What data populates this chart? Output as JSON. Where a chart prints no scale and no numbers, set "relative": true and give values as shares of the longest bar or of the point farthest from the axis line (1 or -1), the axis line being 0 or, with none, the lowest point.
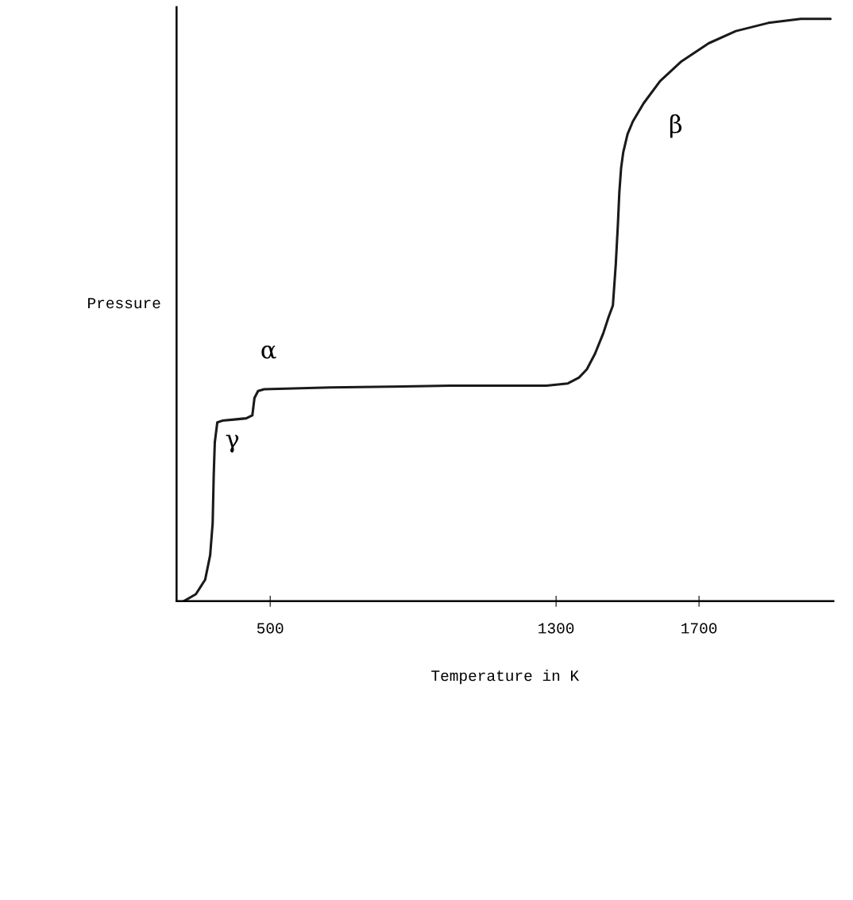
{
  "chart_data": {
    "type": "line",
    "xlabel": "Temperature in K",
    "ylabel": "Pressure",
    "relative": true,
    "x": [
      258,
      292,
      318,
      332,
      339,
      342,
      345,
      352,
      366,
      399,
      433,
      450,
      456,
      466,
      483,
      668,
      1004,
      1273,
      1333,
      1364,
      1386,
      1409,
      1432,
      1447,
      1459,
      1467,
      1473,
      1477,
      1482,
      1488,
      1500,
      1515,
      1545,
      1591,
      1651,
      1727,
      1803,
      1894,
      1985,
      2068
    ],
    "series": [
      {
        "color": "#1a1a1a",
        "values": [
          0,
          0.012,
          0.037,
          0.079,
          0.134,
          0.217,
          0.273,
          0.307,
          0.31,
          0.312,
          0.314,
          0.319,
          0.349,
          0.361,
          0.364,
          0.367,
          0.37,
          0.37,
          0.374,
          0.384,
          0.398,
          0.425,
          0.46,
          0.488,
          0.508,
          0.578,
          0.647,
          0.702,
          0.744,
          0.771,
          0.802,
          0.824,
          0.855,
          0.893,
          0.927,
          0.958,
          0.979,
          0.993,
          1,
          1
        ]
      }
    ],
    "xlim": [
      238,
      2076
    ],
    "xticks": [
      500,
      1300,
      1700
    ],
    "annotations": [
      "α",
      "γ",
      "β"
    ],
    "grid": false,
    "legend": false,
    "marker": "none",
    "line_style": "solid"
  }
}
